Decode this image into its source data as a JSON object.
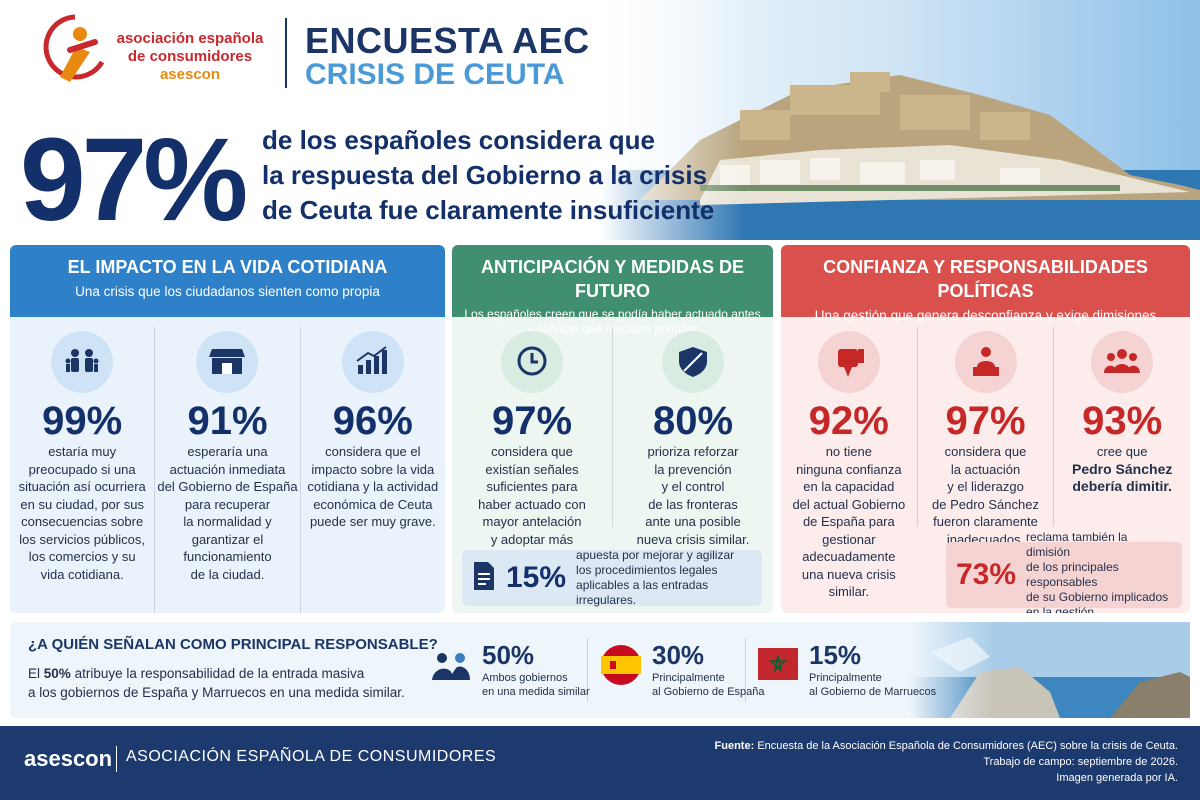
{
  "header": {
    "logo": [
      "asociación española",
      "de consumidores",
      "asescon"
    ],
    "title": "ENCUESTA AEC",
    "subtitle": "CRISIS DE CEUTA"
  },
  "hero": {
    "value": "97%",
    "lines": [
      "de los españoles considera que",
      "la respuesta del Gobierno a la crisis",
      "de Ceuta fue claramente insuficiente"
    ]
  },
  "panels": [
    {
      "title": "EL IMPACTO EN LA VIDA COTIDIANA",
      "subtitle": [
        "Una crisis que los ciudadanos sienten como propia"
      ],
      "stats": [
        {
          "value": "99%",
          "lines": [
            "estaría muy",
            "preocupado si una",
            "situación así ocurriera",
            "en su ciudad, por sus",
            "consecuencias sobre",
            "los servicios públicos,",
            "los comercios y su",
            "vida cotidiana."
          ]
        },
        {
          "value": "91%",
          "lines": [
            "esperaría una",
            "actuación inmediata",
            "del Gobierno de España",
            "para recuperar",
            "la normalidad y",
            "garantizar el",
            "funcionamiento",
            "de la ciudad."
          ]
        },
        {
          "value": "96%",
          "lines": [
            "considera que el",
            "impacto sobre la vida",
            "cotidiana y la actividad",
            "económica de Ceuta",
            "puede ser muy grave."
          ]
        }
      ]
    },
    {
      "title": "ANTICIPACIÓN Y MEDIDAS DE FUTURO",
      "subtitle": [
        "Los españoles creen que se podía haber actuado antes",
        "y señalan qué medidas priorizar"
      ],
      "stats": [
        {
          "value": "97%",
          "lines": [
            "considera que",
            "existían señales",
            "suficientes para",
            "haber actuado con",
            "mayor antelación",
            "y adoptar más",
            "medidas preventivas."
          ]
        },
        {
          "value": "80%",
          "lines": [
            "prioriza reforzar",
            "la prevención",
            "y el control",
            "de las fronteras",
            "ante una posible",
            "nueva crisis similar."
          ]
        }
      ],
      "note": {
        "value": "15%",
        "lines": [
          "apuesta por mejorar y agilizar",
          "los procedimientos legales",
          "aplicables a las entradas irregulares."
        ]
      }
    },
    {
      "title": "CONFIANZA Y RESPONSABILIDADES POLÍTICAS",
      "subtitle": [
        "Una gestión que genera desconfianza y exige dimisiones"
      ],
      "stats": [
        {
          "value": "92%",
          "lines": [
            "no tiene",
            "ninguna confianza",
            "en la capacidad",
            "del actual Gobierno",
            "de España para",
            "gestionar adecuadamente",
            "una nueva crisis similar."
          ]
        },
        {
          "value": "97%",
          "lines": [
            "considera que",
            "la actuación",
            "y el liderazgo",
            "de Pedro Sánchez",
            "fueron claramente",
            "inadecuados."
          ]
        },
        {
          "value": "93%",
          "lines": [
            "cree que",
            "Pedro Sánchez",
            "debería dimitir."
          ]
        }
      ],
      "note": {
        "value": "73%",
        "lines": [
          "reclama también la dimisión",
          "de los principales responsables",
          "de su Gobierno implicados",
          "en la gestión."
        ]
      }
    }
  ],
  "responsible": {
    "question": "¿A QUIÉN SEÑALAN COMO PRINCIPAL RESPONSABLE?",
    "text_pre": "El",
    "text_value": "50%",
    "text_post": "atribuye la responsabilidad de la entrada masiva",
    "text_line2": "a los gobiernos de España y Marruecos en una medida similar.",
    "items": [
      {
        "value": "50%",
        "lines": [
          "Ambos gobiernos",
          "en una medida similar"
        ]
      },
      {
        "value": "30%",
        "lines": [
          "Principalmente",
          "al Gobierno de España"
        ]
      },
      {
        "value": "15%",
        "lines": [
          "Principalmente",
          "al Gobierno de Marruecos"
        ]
      }
    ]
  },
  "footer": {
    "brand": "asescon",
    "name": "ASOCIACIÓN ESPAÑOLA DE CONSUMIDORES",
    "source_label": "Fuente:",
    "source": "Encuesta de la Asociación Española de Consumidores (AEC) sobre la crisis de Ceuta.",
    "lines": [
      "Trabajo de campo: septiembre de 2026.",
      "Imagen generada por IA."
    ]
  }
}
